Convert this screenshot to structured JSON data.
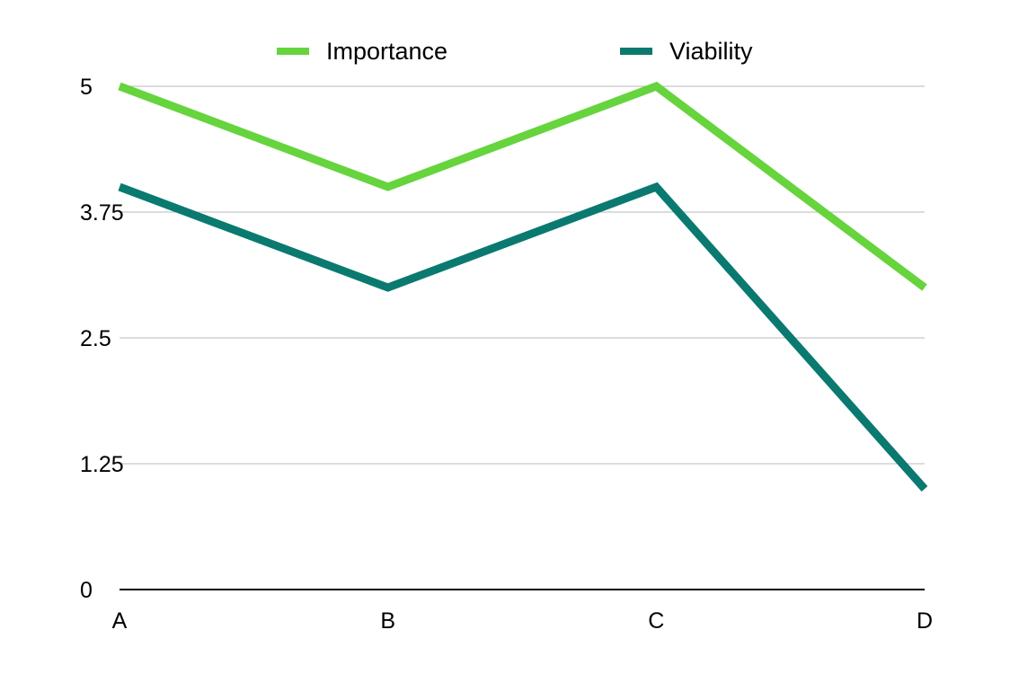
{
  "chart_data": {
    "type": "line",
    "categories": [
      "A",
      "B",
      "C",
      "D"
    ],
    "series": [
      {
        "name": "Importance",
        "values": [
          5,
          4,
          5,
          3
        ],
        "color": "#66d43d"
      },
      {
        "name": "Viability",
        "values": [
          4,
          3,
          4,
          1
        ],
        "color": "#0a7a70"
      }
    ],
    "ylim": [
      0,
      5
    ],
    "yticks": [
      0,
      1.25,
      2.5,
      3.75,
      5
    ],
    "ytick_labels": [
      "0",
      "1.25",
      "2.5",
      "3.75",
      "5"
    ],
    "grid": true,
    "legend_position": "top-center",
    "title": "",
    "xlabel": "",
    "ylabel": ""
  }
}
